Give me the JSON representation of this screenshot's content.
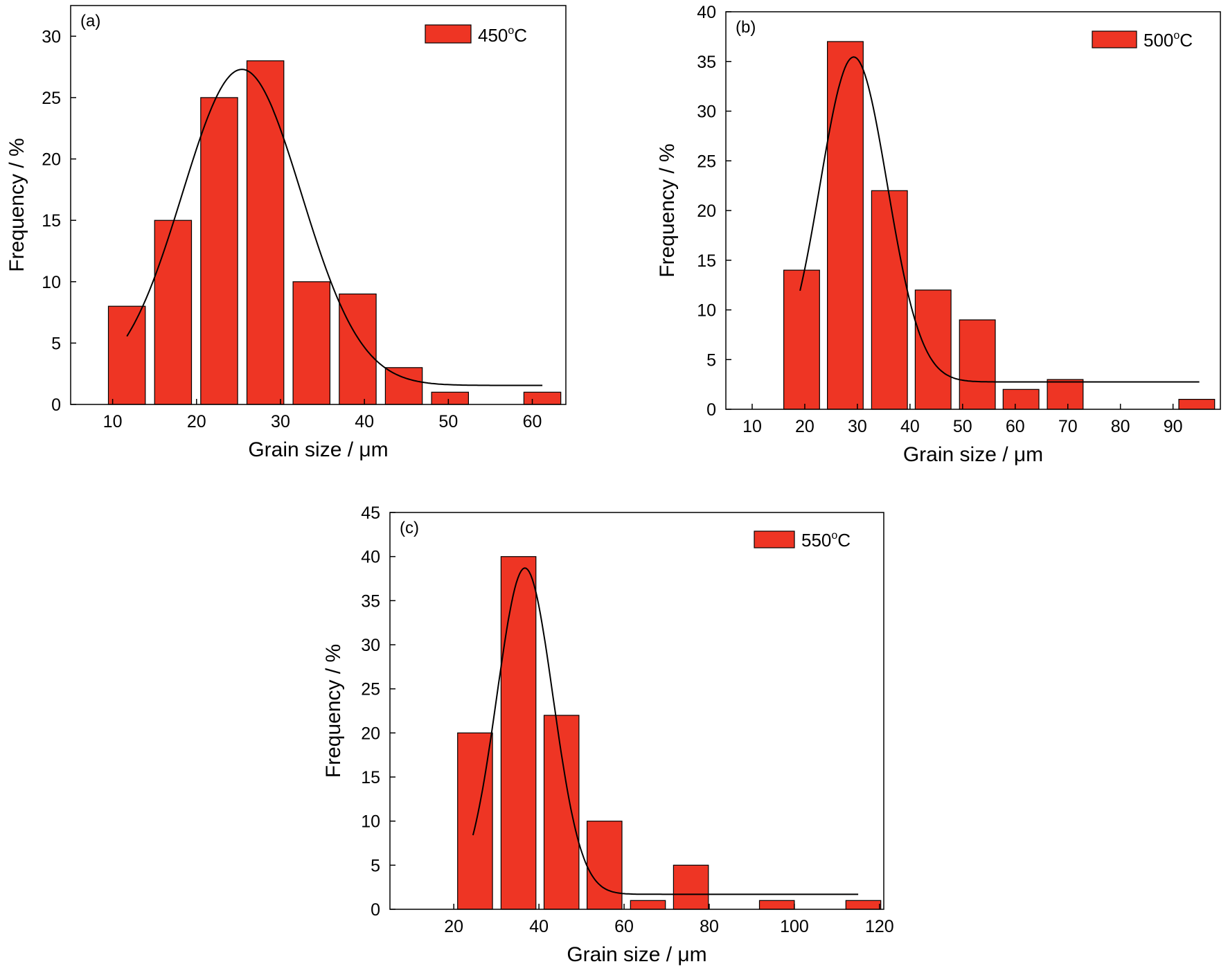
{
  "colors": {
    "bar_fill": "#ee3524",
    "bar_stroke": "#000000",
    "fit_line": "#000000"
  },
  "chart_data": [
    {
      "type": "bar",
      "panel_label": "(a)",
      "legend": {
        "text": "450",
        "sup": "o",
        "unit": "C"
      },
      "xlabel": "Grain size / μm",
      "ylabel": "Frequency / %",
      "xlim": [
        5,
        64
      ],
      "ylim": [
        0,
        32.5
      ],
      "xticks": [
        10,
        20,
        30,
        40,
        50,
        60
      ],
      "yticks": [
        0,
        5,
        10,
        15,
        20,
        25,
        30
      ],
      "bar_width": 4.4,
      "bars": [
        {
          "x": 11.7,
          "value": 8
        },
        {
          "x": 17.2,
          "value": 15
        },
        {
          "x": 22.7,
          "value": 25
        },
        {
          "x": 28.2,
          "value": 28
        },
        {
          "x": 33.7,
          "value": 10
        },
        {
          "x": 39.2,
          "value": 9
        },
        {
          "x": 44.7,
          "value": 3
        },
        {
          "x": 50.2,
          "value": 1
        },
        {
          "x": 61.2,
          "value": 1
        }
      ],
      "fit": {
        "baseline": 1.55,
        "amplitude": 25.75,
        "center": 25.4,
        "sigma": 7.1,
        "x_range": [
          11.7,
          61.2
        ]
      }
    },
    {
      "type": "bar",
      "panel_label": "(b)",
      "legend": {
        "text": "500",
        "sup": "o",
        "unit": "C"
      },
      "xlabel": "Grain size / μm",
      "ylabel": "Frequency / %",
      "xlim": [
        5,
        99
      ],
      "ylim": [
        0,
        40
      ],
      "xticks": [
        10,
        20,
        30,
        40,
        50,
        60,
        70,
        80,
        90
      ],
      "yticks": [
        0,
        5,
        10,
        15,
        20,
        25,
        30,
        35,
        40
      ],
      "bar_width": 6.8,
      "bars": [
        {
          "x": 19.4,
          "value": 14
        },
        {
          "x": 27.7,
          "value": 37
        },
        {
          "x": 36.1,
          "value": 22
        },
        {
          "x": 44.4,
          "value": 12
        },
        {
          "x": 52.8,
          "value": 9
        },
        {
          "x": 61.1,
          "value": 2
        },
        {
          "x": 69.5,
          "value": 3
        },
        {
          "x": 94.5,
          "value": 1
        }
      ],
      "fit": {
        "baseline": 2.75,
        "amplitude": 32.7,
        "center": 29.3,
        "sigma": 6.4,
        "x_range": [
          19.1,
          95.0
        ]
      }
    },
    {
      "type": "bar",
      "panel_label": "(c)",
      "legend": {
        "text": "550",
        "sup": "o",
        "unit": "C"
      },
      "xlabel": "Grain size / μm",
      "ylabel": "Frequency / %",
      "xlim": [
        5,
        121
      ],
      "ylim": [
        0,
        45
      ],
      "xticks": [
        20,
        40,
        60,
        80,
        100,
        120
      ],
      "yticks": [
        0,
        5,
        10,
        15,
        20,
        25,
        30,
        35,
        40,
        45
      ],
      "bar_width": 8.2,
      "bars": [
        {
          "x": 25.0,
          "value": 20
        },
        {
          "x": 35.2,
          "value": 40
        },
        {
          "x": 45.3,
          "value": 22
        },
        {
          "x": 55.4,
          "value": 10
        },
        {
          "x": 65.6,
          "value": 1
        },
        {
          "x": 75.7,
          "value": 5
        },
        {
          "x": 95.9,
          "value": 1
        },
        {
          "x": 116.2,
          "value": 1
        }
      ],
      "fit": {
        "baseline": 1.7,
        "amplitude": 37.0,
        "center": 36.7,
        "sigma": 6.6,
        "x_range": [
          24.5,
          115.0
        ]
      }
    }
  ]
}
